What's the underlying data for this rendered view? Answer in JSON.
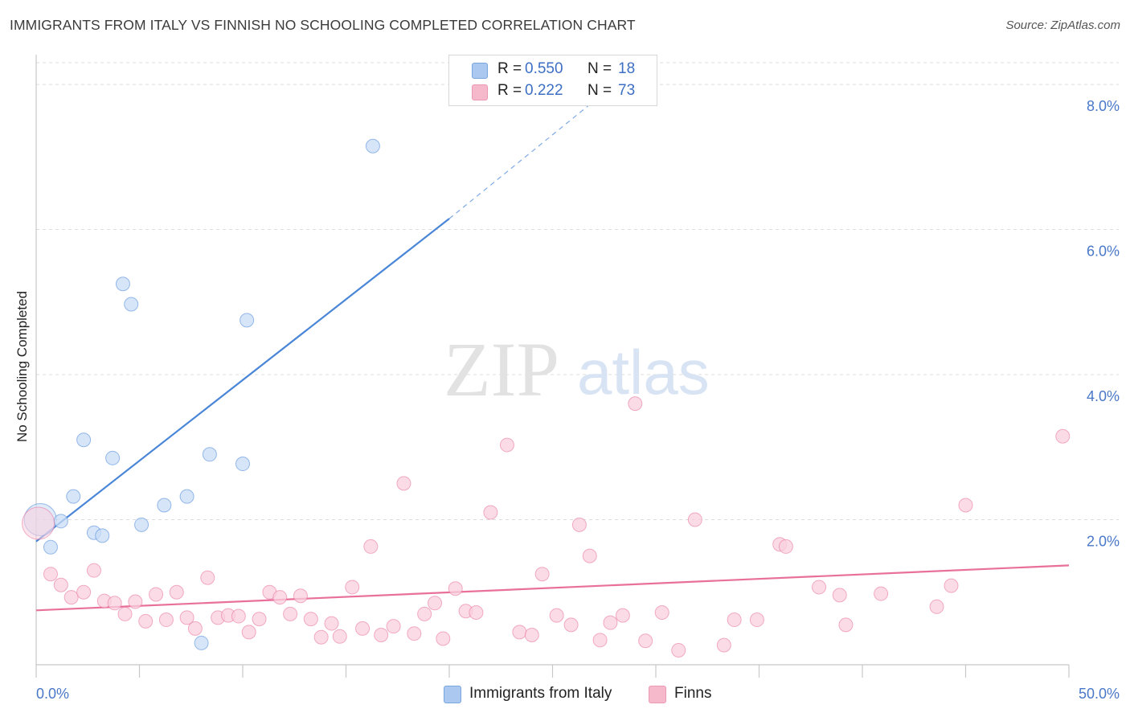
{
  "header": {
    "title": "IMMIGRANTS FROM ITALY VS FINNISH NO SCHOOLING COMPLETED CORRELATION CHART",
    "source": "Source: ZipAtlas.com"
  },
  "watermark": {
    "zip": "ZIP",
    "atlas": "atlas"
  },
  "legend_top": {
    "rows": [
      {
        "r_label": "R =",
        "r_value": "0.550",
        "n_label": "N =",
        "n_value": "18",
        "color": "#aac8f0"
      },
      {
        "r_label": "R =",
        "r_value": "0.222",
        "n_label": "N =",
        "n_value": "73",
        "color": "#f6b8cb"
      }
    ]
  },
  "legend_bottom": {
    "items": [
      {
        "label": "Immigrants from Italy",
        "color": "#aac8f0"
      },
      {
        "label": "Finns",
        "color": "#f6b8cb"
      }
    ]
  },
  "chart_data": {
    "type": "scatter",
    "title": "IMMIGRANTS FROM ITALY VS FINNISH NO SCHOOLING COMPLETED CORRELATION CHART",
    "xlabel": "",
    "ylabel": "No Schooling Completed",
    "xlim": [
      0,
      50
    ],
    "ylim": [
      0,
      8.3
    ],
    "x_tick_labels": [
      "0.0%",
      "50.0%"
    ],
    "y_ticks": [
      2,
      4,
      6,
      8
    ],
    "y_tick_labels": [
      "2.0%",
      "4.0%",
      "6.0%",
      "8.0%"
    ],
    "grid": true,
    "legend_position": "top-center",
    "series": [
      {
        "name": "Immigrants from Italy",
        "color": "#4a86d8",
        "fill": "#c9dcf5",
        "trend": {
          "x": [
            0,
            20
          ],
          "y": [
            1.7,
            6.15
          ],
          "dashed_to": [
            28,
            8.0
          ]
        },
        "points": [
          {
            "x": 0.2,
            "y": 2.0,
            "big": true
          },
          {
            "x": 0.7,
            "y": 1.62
          },
          {
            "x": 1.2,
            "y": 1.98
          },
          {
            "x": 1.8,
            "y": 2.32
          },
          {
            "x": 2.3,
            "y": 3.1
          },
          {
            "x": 2.8,
            "y": 1.82
          },
          {
            "x": 3.2,
            "y": 1.78
          },
          {
            "x": 3.7,
            "y": 2.85
          },
          {
            "x": 4.2,
            "y": 5.25
          },
          {
            "x": 4.6,
            "y": 4.97
          },
          {
            "x": 5.1,
            "y": 1.93
          },
          {
            "x": 6.2,
            "y": 2.2
          },
          {
            "x": 7.3,
            "y": 2.32
          },
          {
            "x": 8.0,
            "y": 0.3
          },
          {
            "x": 8.4,
            "y": 2.9
          },
          {
            "x": 10.0,
            "y": 2.77
          },
          {
            "x": 10.2,
            "y": 4.75
          },
          {
            "x": 16.3,
            "y": 7.15
          }
        ]
      },
      {
        "name": "Finns",
        "color": "#e8709a",
        "fill": "#f9d0de",
        "trend": {
          "x": [
            0,
            50
          ],
          "y": [
            0.75,
            1.37
          ]
        },
        "points": [
          {
            "x": 0.1,
            "y": 1.95,
            "big": true
          },
          {
            "x": 0.7,
            "y": 1.25
          },
          {
            "x": 1.2,
            "y": 1.1
          },
          {
            "x": 1.7,
            "y": 0.93
          },
          {
            "x": 2.3,
            "y": 1.0
          },
          {
            "x": 2.8,
            "y": 1.3
          },
          {
            "x": 3.3,
            "y": 0.88
          },
          {
            "x": 3.8,
            "y": 0.85
          },
          {
            "x": 4.3,
            "y": 0.7
          },
          {
            "x": 4.8,
            "y": 0.87
          },
          {
            "x": 5.3,
            "y": 0.6
          },
          {
            "x": 5.8,
            "y": 0.97
          },
          {
            "x": 6.3,
            "y": 0.62
          },
          {
            "x": 6.8,
            "y": 1.0
          },
          {
            "x": 7.3,
            "y": 0.65
          },
          {
            "x": 7.7,
            "y": 0.5
          },
          {
            "x": 8.3,
            "y": 1.2
          },
          {
            "x": 8.8,
            "y": 0.65
          },
          {
            "x": 9.3,
            "y": 0.68
          },
          {
            "x": 9.8,
            "y": 0.67
          },
          {
            "x": 10.3,
            "y": 0.45
          },
          {
            "x": 10.8,
            "y": 0.63
          },
          {
            "x": 11.3,
            "y": 1.0
          },
          {
            "x": 11.8,
            "y": 0.93
          },
          {
            "x": 12.3,
            "y": 0.7
          },
          {
            "x": 12.8,
            "y": 0.95
          },
          {
            "x": 13.3,
            "y": 0.63
          },
          {
            "x": 13.8,
            "y": 0.38
          },
          {
            "x": 14.3,
            "y": 0.57
          },
          {
            "x": 14.7,
            "y": 0.39
          },
          {
            "x": 15.3,
            "y": 1.07
          },
          {
            "x": 15.8,
            "y": 0.5
          },
          {
            "x": 16.2,
            "y": 1.63
          },
          {
            "x": 16.7,
            "y": 0.41
          },
          {
            "x": 17.3,
            "y": 0.53
          },
          {
            "x": 17.8,
            "y": 2.5
          },
          {
            "x": 18.3,
            "y": 0.43
          },
          {
            "x": 18.8,
            "y": 0.7
          },
          {
            "x": 19.3,
            "y": 0.85
          },
          {
            "x": 19.7,
            "y": 0.36
          },
          {
            "x": 20.3,
            "y": 1.05
          },
          {
            "x": 20.8,
            "y": 0.74
          },
          {
            "x": 21.3,
            "y": 0.72
          },
          {
            "x": 22.0,
            "y": 2.1
          },
          {
            "x": 22.8,
            "y": 3.03
          },
          {
            "x": 23.4,
            "y": 0.45
          },
          {
            "x": 24.0,
            "y": 0.41
          },
          {
            "x": 24.5,
            "y": 1.25
          },
          {
            "x": 25.2,
            "y": 0.68
          },
          {
            "x": 25.9,
            "y": 0.55
          },
          {
            "x": 26.3,
            "y": 1.93
          },
          {
            "x": 26.8,
            "y": 1.5
          },
          {
            "x": 27.3,
            "y": 0.34
          },
          {
            "x": 27.8,
            "y": 0.58
          },
          {
            "x": 28.4,
            "y": 0.68
          },
          {
            "x": 29.0,
            "y": 3.6
          },
          {
            "x": 29.5,
            "y": 0.33
          },
          {
            "x": 30.3,
            "y": 0.72
          },
          {
            "x": 31.1,
            "y": 0.2
          },
          {
            "x": 31.9,
            "y": 2.0
          },
          {
            "x": 33.3,
            "y": 0.27
          },
          {
            "x": 33.8,
            "y": 0.62
          },
          {
            "x": 34.9,
            "y": 0.62
          },
          {
            "x": 36.0,
            "y": 1.66
          },
          {
            "x": 36.3,
            "y": 1.63
          },
          {
            "x": 37.9,
            "y": 1.07
          },
          {
            "x": 38.9,
            "y": 0.96
          },
          {
            "x": 39.2,
            "y": 0.55
          },
          {
            "x": 40.9,
            "y": 0.98
          },
          {
            "x": 43.6,
            "y": 0.8
          },
          {
            "x": 44.3,
            "y": 1.09
          },
          {
            "x": 45.0,
            "y": 2.2
          },
          {
            "x": 49.7,
            "y": 3.15
          }
        ]
      }
    ]
  }
}
